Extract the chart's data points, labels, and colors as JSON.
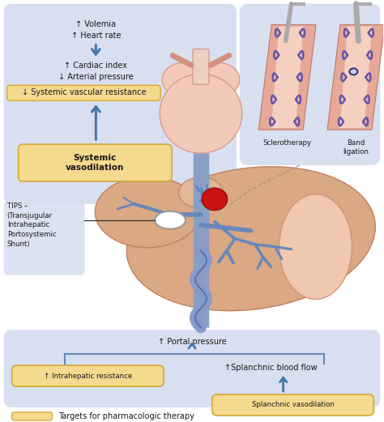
{
  "bg_color": "#ffffff",
  "panel_bg": "#d8dff0",
  "yellow_color": "#f5d98e",
  "yellow_border": "#d4a830",
  "arrow_color": "#4477aa",
  "text_color": "#1a1a1a",
  "heart_color": "#f2c9b8",
  "heart_edge": "#d49080",
  "liver_color": "#daa882",
  "liver_edge": "#c08060",
  "spleen_color": "#f0c8b0",
  "spleen_edge": "#d09878",
  "vessel_color": "#6688bb",
  "vessel_fill": "#99aacc",
  "varice_color": "#6655aa",
  "blood_color": "#cc2222",
  "tool_color": "#999999",
  "sclerotherapy_label": "Sclerotherapy",
  "band_label": "Band\nligation",
  "tips_label": "TIPS –\n(Transjugular\nIntrahepatic\nPortosystemic\nShunt)",
  "portal_label": "↑ Portal pressure",
  "intrahepatic_label": "↑ Intrahepatic resistance",
  "splanchnic_flow_label": "↑Splanchnic blood flow",
  "splanchnic_vasodilation_label": "Splanchnic vasodilation",
  "systemic_vasodilation_label": "Systemic\nvasodilation",
  "volemia_label": "↑ Volemia\n↑ Heart rate",
  "targets_label": "Targets for pharmacologic therapy",
  "font_size_main": 7.0,
  "font_size_small": 6.2,
  "font_size_bold": 7.5
}
